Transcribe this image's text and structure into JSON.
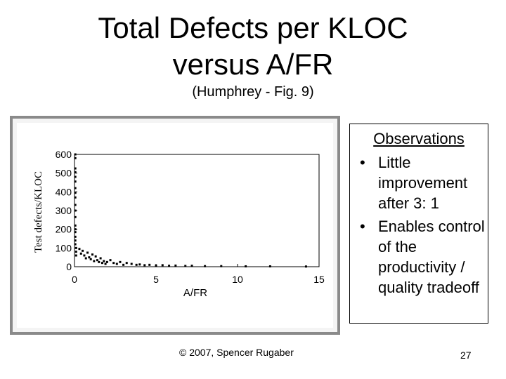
{
  "slide": {
    "title_line1": "Total Defects per KLOC",
    "title_line2": "versus A/FR",
    "subtitle": "(Humphrey - Fig. 9)",
    "footer": "© 2007, Spencer Rugaber",
    "page_number": "27"
  },
  "observations": {
    "title": "Observations",
    "bullet_glyph": "•",
    "items": [
      "Little improvement after 3: 1",
      "Enables control of the productivity / quality tradeoff"
    ]
  },
  "chart_data": {
    "type": "scatter",
    "title": "",
    "xlabel": "A/FR",
    "ylabel": "Test defects/KLOC",
    "xlim": [
      0,
      15
    ],
    "ylim": [
      0,
      600
    ],
    "x_ticks": [
      0,
      5,
      10,
      15
    ],
    "y_ticks": [
      0,
      100,
      200,
      300,
      400,
      500,
      600
    ],
    "grid": false,
    "point_color": "#000000",
    "frame_color": "#8a8a8a",
    "points": [
      {
        "x": 0.05,
        "y": 600
      },
      {
        "x": 0.05,
        "y": 580
      },
      {
        "x": 0.05,
        "y": 525
      },
      {
        "x": 0.05,
        "y": 505
      },
      {
        "x": 0.05,
        "y": 480
      },
      {
        "x": 0.05,
        "y": 455
      },
      {
        "x": 0.05,
        "y": 420
      },
      {
        "x": 0.05,
        "y": 395
      },
      {
        "x": 0.05,
        "y": 370
      },
      {
        "x": 0.05,
        "y": 330
      },
      {
        "x": 0.05,
        "y": 300
      },
      {
        "x": 0.05,
        "y": 265
      },
      {
        "x": 0.05,
        "y": 220
      },
      {
        "x": 0.05,
        "y": 200
      },
      {
        "x": 0.05,
        "y": 185
      },
      {
        "x": 0.05,
        "y": 160
      },
      {
        "x": 0.05,
        "y": 140
      },
      {
        "x": 0.05,
        "y": 120
      },
      {
        "x": 0.1,
        "y": 100
      },
      {
        "x": 0.1,
        "y": 80
      },
      {
        "x": 0.1,
        "y": 60
      },
      {
        "x": 0.3,
        "y": 95
      },
      {
        "x": 0.4,
        "y": 70
      },
      {
        "x": 0.5,
        "y": 85
      },
      {
        "x": 0.6,
        "y": 60
      },
      {
        "x": 0.7,
        "y": 45
      },
      {
        "x": 0.8,
        "y": 75
      },
      {
        "x": 0.9,
        "y": 50
      },
      {
        "x": 1.0,
        "y": 40
      },
      {
        "x": 1.1,
        "y": 65
      },
      {
        "x": 1.2,
        "y": 30
      },
      {
        "x": 1.3,
        "y": 55
      },
      {
        "x": 1.4,
        "y": 35
      },
      {
        "x": 1.5,
        "y": 25
      },
      {
        "x": 1.6,
        "y": 45
      },
      {
        "x": 1.7,
        "y": 20
      },
      {
        "x": 1.8,
        "y": 30
      },
      {
        "x": 1.9,
        "y": 15
      },
      {
        "x": 2.0,
        "y": 25
      },
      {
        "x": 2.2,
        "y": 35
      },
      {
        "x": 2.4,
        "y": 20
      },
      {
        "x": 2.6,
        "y": 15
      },
      {
        "x": 2.8,
        "y": 25
      },
      {
        "x": 3.0,
        "y": 10
      },
      {
        "x": 3.2,
        "y": 20
      },
      {
        "x": 3.5,
        "y": 15
      },
      {
        "x": 3.8,
        "y": 10
      },
      {
        "x": 4.0,
        "y": 12
      },
      {
        "x": 4.3,
        "y": 8
      },
      {
        "x": 4.6,
        "y": 10
      },
      {
        "x": 5.0,
        "y": 6
      },
      {
        "x": 5.4,
        "y": 8
      },
      {
        "x": 5.8,
        "y": 5
      },
      {
        "x": 6.2,
        "y": 6
      },
      {
        "x": 6.8,
        "y": 4
      },
      {
        "x": 7.2,
        "y": 5
      },
      {
        "x": 8.0,
        "y": 3
      },
      {
        "x": 9.0,
        "y": 3
      },
      {
        "x": 10.5,
        "y": 2
      },
      {
        "x": 12.0,
        "y": 2
      },
      {
        "x": 14.2,
        "y": 1
      }
    ]
  }
}
